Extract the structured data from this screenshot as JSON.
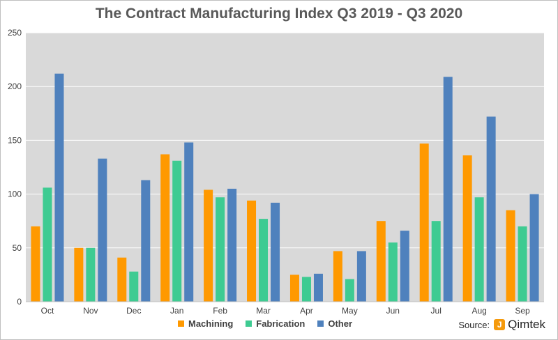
{
  "chart_data": {
    "type": "bar",
    "title": "The Contract Manufacturing Index Q3 2019 - Q3 2020",
    "categories": [
      "Oct",
      "Nov",
      "Dec",
      "Jan",
      "Feb",
      "Mar",
      "Apr",
      "May",
      "Jun",
      "Jul",
      "Aug",
      "Sep"
    ],
    "series": [
      {
        "name": "Machining",
        "color": "#ff9900",
        "values": [
          70,
          50,
          41,
          137,
          104,
          94,
          25,
          47,
          75,
          147,
          136,
          85
        ]
      },
      {
        "name": "Fabrication",
        "color": "#3ecb92",
        "values": [
          106,
          50,
          28,
          131,
          97,
          77,
          23,
          21,
          55,
          75,
          97,
          70
        ]
      },
      {
        "name": "Other",
        "color": "#4f81bd",
        "values": [
          212,
          133,
          113,
          148,
          105,
          92,
          26,
          47,
          66,
          209,
          172,
          100
        ]
      }
    ],
    "yticks": [
      "0",
      "50",
      "100",
      "150",
      "200",
      "250"
    ],
    "ylim": [
      0,
      250
    ],
    "grid": true,
    "legend_position": "bottom",
    "plot_background": "#d9d9d9",
    "gridline_color": "#ffffff"
  },
  "source": {
    "label": "Source:",
    "brand_mark": "J",
    "brand_name": "Qimtek"
  }
}
